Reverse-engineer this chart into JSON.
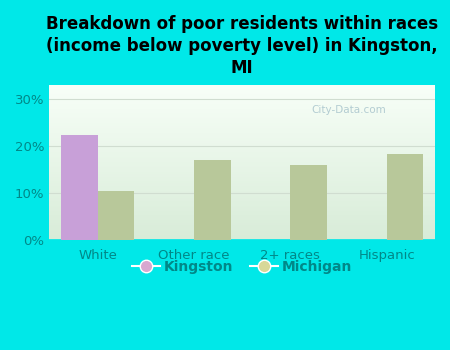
{
  "title": "Breakdown of poor residents within races\n(income below poverty level) in Kingston,\nMI",
  "categories": [
    "White",
    "Other race",
    "2+ races",
    "Hispanic"
  ],
  "kingston_values": [
    22.2,
    0,
    0,
    0
  ],
  "michigan_values": [
    10.5,
    17.0,
    16.0,
    18.2
  ],
  "kingston_color": "#c8a0d8",
  "michigan_color": "#b8c89a",
  "background_color": "#00e8e8",
  "plot_bg_top": "#d8ecd8",
  "plot_bg_bottom": "#f8fff8",
  "ylabel_ticks": [
    0,
    10,
    20,
    30
  ],
  "ylim": [
    0,
    33
  ],
  "bar_width": 0.38,
  "legend_kingston_label": "Kingston",
  "legend_michigan_label": "Michigan",
  "legend_kingston_color": "#d8a8d0",
  "legend_michigan_color": "#d8d898",
  "title_fontsize": 12,
  "tick_fontsize": 9.5,
  "tick_color": "#008888",
  "legend_fontsize": 10,
  "watermark_text": "City-Data.com",
  "watermark_color": "#a8c4cc",
  "grid_color": "#d0ddd0"
}
